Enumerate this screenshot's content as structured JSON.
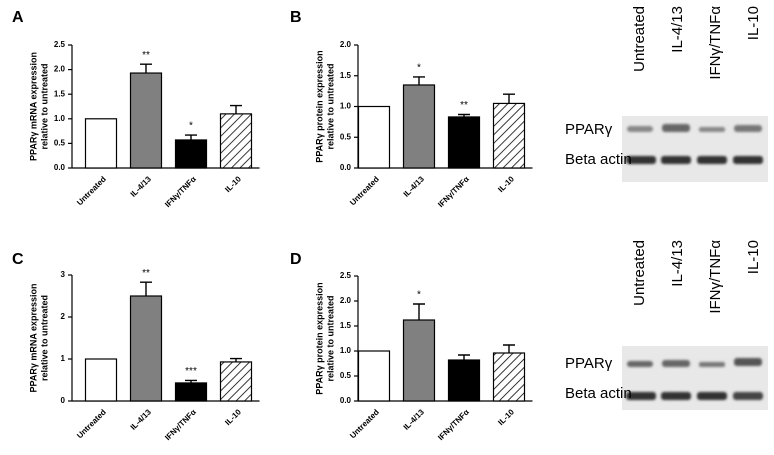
{
  "chart_data": [
    {
      "type": "bar",
      "panel": "A",
      "y_label": [
        "PPARγ mRNA expression",
        "relative to untreated"
      ],
      "categories": [
        "Untreated",
        "IL-4/13",
        "IFNγ/TNFα",
        "IL-10"
      ],
      "values": [
        1.0,
        1.93,
        0.57,
        1.1
      ],
      "errors": [
        null,
        0.18,
        0.1,
        0.17
      ],
      "annotations": [
        null,
        "**",
        "*",
        null
      ],
      "colors": [
        "#ffffff",
        "#808080",
        "#000000",
        "#ffffff"
      ],
      "patterns": [
        "solid",
        "solid",
        "solid",
        "hatch"
      ],
      "ylim": [
        0,
        2.5
      ],
      "yticks": [
        {
          "value": 0,
          "label": "0.0"
        },
        0.5,
        {
          "value": 1,
          "label": "1.0"
        },
        1.5,
        {
          "value": 2,
          "label": "2.0"
        },
        2.5
      ]
    },
    {
      "type": "bar",
      "panel": "B",
      "y_label": [
        "PPARγ protein expression",
        "relative to untreated"
      ],
      "categories": [
        "Untreated",
        "IL-4/13",
        "IFNγ/TNFα",
        "IL-10"
      ],
      "values": [
        1.0,
        1.35,
        0.83,
        1.05
      ],
      "errors": [
        null,
        0.13,
        0.04,
        0.15
      ],
      "annotations": [
        null,
        "*",
        "**",
        null
      ],
      "colors": [
        "#ffffff",
        "#808080",
        "#000000",
        "#ffffff"
      ],
      "patterns": [
        "solid",
        "solid",
        "solid",
        "hatch"
      ],
      "ylim": [
        0,
        2.0
      ],
      "yticks": [
        {
          "value": 0,
          "label": "0.0"
        },
        0.5,
        {
          "value": 1,
          "label": "1.0"
        },
        1.5,
        {
          "value": 2,
          "label": "2.0"
        }
      ]
    },
    {
      "type": "bar",
      "panel": "C",
      "y_label": [
        "PPARγ mRNA expression",
        "relative to untreated"
      ],
      "categories": [
        "Untreated",
        "IL-4/13",
        "IFNγ/TNFα",
        "IL-10"
      ],
      "values": [
        1.0,
        2.5,
        0.43,
        0.93
      ],
      "errors": [
        null,
        0.33,
        0.06,
        0.08
      ],
      "annotations": [
        null,
        "**",
        "***",
        null
      ],
      "colors": [
        "#ffffff",
        "#808080",
        "#000000",
        "#ffffff"
      ],
      "patterns": [
        "solid",
        "solid",
        "solid",
        "hatch"
      ],
      "ylim": [
        0,
        3
      ],
      "yticks": [
        0,
        1,
        2,
        3
      ]
    },
    {
      "type": "bar",
      "panel": "D",
      "y_label": [
        "PPARγ protein expression",
        "relative to untreated"
      ],
      "categories": [
        "Untreated",
        "IL-4/13",
        "IFNγ/TNFα",
        "IL-10"
      ],
      "values": [
        1.0,
        1.62,
        0.82,
        0.96
      ],
      "errors": [
        null,
        0.32,
        0.1,
        0.16
      ],
      "annotations": [
        null,
        "*",
        null,
        null
      ],
      "colors": [
        "#ffffff",
        "#808080",
        "#000000",
        "#ffffff"
      ],
      "patterns": [
        "solid",
        "solid",
        "solid",
        "hatch"
      ],
      "ylim": [
        0,
        2.5
      ],
      "yticks": [
        {
          "value": 0,
          "label": "0.0"
        },
        0.5,
        {
          "value": 1,
          "label": "1.0"
        },
        1.5,
        {
          "value": 2,
          "label": "2.0"
        },
        2.5
      ]
    }
  ],
  "blots": [
    {
      "lanes": [
        "Untreated",
        "IL-4/13",
        "IFNγ/TNFα",
        "IL-10"
      ],
      "rows": [
        "PPARγ",
        "Beta actin"
      ]
    },
    {
      "lanes": [
        "Untreated",
        "IL-4/13",
        "IFNγ/TNFα",
        "IL-10"
      ],
      "rows": [
        "PPARγ",
        "Beta actin"
      ]
    }
  ]
}
